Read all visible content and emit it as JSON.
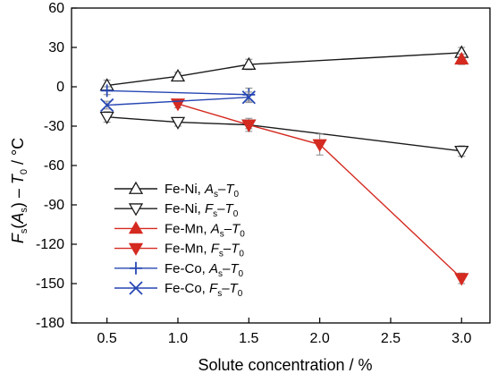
{
  "chart_data": {
    "type": "line",
    "xlabel": "Solute concentration / %",
    "ylabel_parts": {
      "F": "F",
      "s": "s",
      "A": "A",
      "T": "T",
      "zero": "0",
      "unit": " / °C"
    },
    "xlim": [
      0.25,
      3.2
    ],
    "ylim": [
      -180,
      60
    ],
    "xticks": [
      0.5,
      1.0,
      1.5,
      2.0,
      2.5,
      3.0
    ],
    "xtick_labels": [
      "0.5",
      "1.0",
      "1.5",
      "2.0",
      "2.5",
      "3.0"
    ],
    "yticks": [
      -180,
      -150,
      -120,
      -90,
      -60,
      -30,
      0,
      30,
      60
    ],
    "ytick_labels": [
      "-180",
      "-150",
      "-120",
      "-90",
      "-60",
      "-30",
      "0",
      "30",
      "60"
    ],
    "series": [
      {
        "name": "Fe-Ni, As–T0",
        "legend_label": "Fe-Ni,",
        "legend_sym": "A",
        "legend_sub": "s",
        "color": "#1a1a1a",
        "marker": "triangle-up-open",
        "x": [
          0.5,
          1.0,
          1.5,
          3.0
        ],
        "y": [
          1,
          8,
          17,
          26
        ],
        "err": [
          4,
          3,
          4,
          4
        ]
      },
      {
        "name": "Fe-Ni, Fs–T0",
        "legend_label": "Fe-Ni,",
        "legend_sym": "F",
        "legend_sub": "s",
        "color": "#1a1a1a",
        "marker": "triangle-down-open",
        "x": [
          0.5,
          1.0,
          1.5,
          3.0
        ],
        "y": [
          -23,
          -27,
          -29,
          -49
        ],
        "err": [
          4,
          3,
          5,
          4
        ]
      },
      {
        "name": "Fe-Mn, As–T0",
        "legend_label": "Fe-Mn,",
        "legend_sym": "A",
        "legend_sub": "s",
        "color": "#d42a20",
        "marker": "triangle-up-filled",
        "x": [
          3.0
        ],
        "y": [
          21
        ],
        "err": [
          4
        ]
      },
      {
        "name": "Fe-Mn, Fs–T0",
        "legend_label": "Fe-Mn,",
        "legend_sym": "F",
        "legend_sub": "s",
        "color": "#d42a20",
        "marker": "triangle-down-filled",
        "x": [
          1.0,
          1.5,
          2.0,
          3.0
        ],
        "y": [
          -13,
          -29,
          -44,
          -146
        ],
        "err": [
          3,
          3,
          8,
          4
        ]
      },
      {
        "name": "Fe-Co, As–T0",
        "legend_label": "Fe-Co,",
        "legend_sym": "A",
        "legend_sub": "s",
        "color": "#2747b3",
        "marker": "plus",
        "x": [
          0.5,
          1.5
        ],
        "y": [
          -3,
          -6
        ],
        "err": [
          3,
          5
        ]
      },
      {
        "name": "Fe-Co, Fs–T0",
        "legend_label": "Fe-Co,",
        "legend_sym": "F",
        "legend_sub": "s",
        "color": "#2747b3",
        "marker": "cross",
        "x": [
          0.5,
          1.5
        ],
        "y": [
          -14,
          -8
        ],
        "err": [
          3,
          4
        ]
      }
    ],
    "legend_common": {
      "dash": "–",
      "T": "T",
      "zero": "0"
    },
    "legend_position": "lower-left",
    "grid": false
  }
}
